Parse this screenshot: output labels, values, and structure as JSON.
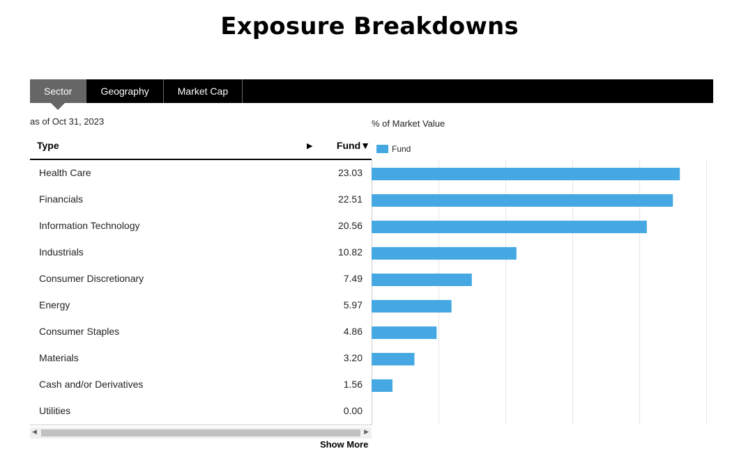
{
  "page": {
    "title": "Exposure Breakdowns"
  },
  "tabs": [
    {
      "label": "Sector",
      "active": true
    },
    {
      "label": "Geography",
      "active": false
    },
    {
      "label": "Market Cap",
      "active": false
    }
  ],
  "as_of": "as of Oct 31, 2023",
  "table": {
    "col_type": "Type",
    "col_fund": "Fund",
    "expand_icon": "right-triangle-icon",
    "sort_icon": "down-triangle-icon",
    "rows": [
      {
        "name": "Health Care",
        "value": "23.03"
      },
      {
        "name": "Financials",
        "value": "22.51"
      },
      {
        "name": "Information Technology",
        "value": "20.56"
      },
      {
        "name": "Industrials",
        "value": "10.82"
      },
      {
        "name": "Consumer Discretionary",
        "value": "7.49"
      },
      {
        "name": "Energy",
        "value": "5.97"
      },
      {
        "name": "Consumer Staples",
        "value": "4.86"
      },
      {
        "name": "Materials",
        "value": "3.20"
      },
      {
        "name": "Cash and/or Derivatives",
        "value": "1.56"
      },
      {
        "name": "Utilities",
        "value": "0.00"
      }
    ]
  },
  "show_more": "Show More",
  "chart_data": {
    "type": "bar",
    "orientation": "horizontal",
    "title": "% of Market Value",
    "categories": [
      "Health Care",
      "Financials",
      "Information Technology",
      "Industrials",
      "Consumer Discretionary",
      "Energy",
      "Consumer Staples",
      "Materials",
      "Cash and/or Derivatives",
      "Utilities"
    ],
    "series": [
      {
        "name": "Fund",
        "values": [
          23.03,
          22.51,
          20.56,
          10.82,
          7.49,
          5.97,
          4.86,
          3.2,
          1.56,
          0.0
        ]
      }
    ],
    "xlim": [
      0,
      25
    ],
    "grid": true,
    "legend": "top-left",
    "color": "#45a8e3"
  }
}
